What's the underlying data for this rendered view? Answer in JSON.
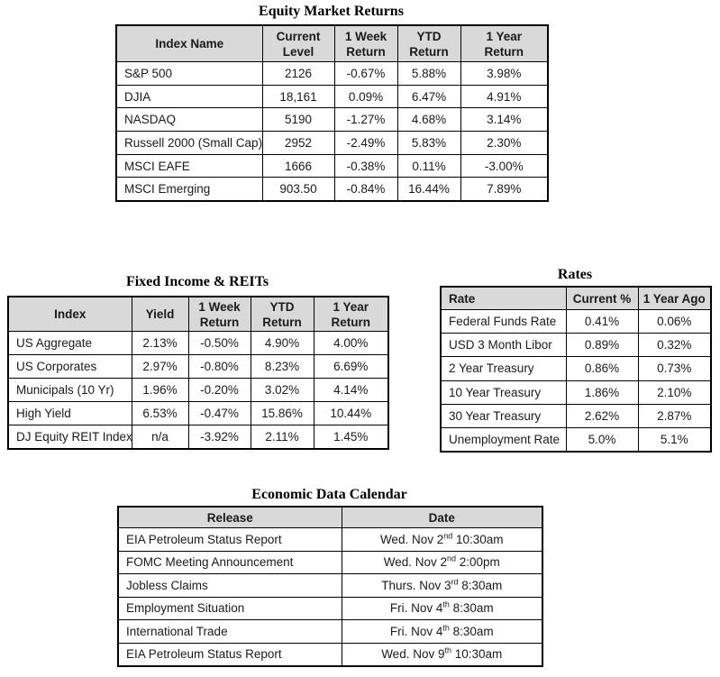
{
  "colors": {
    "header_bg": "#d9d9d9",
    "border": "#000000",
    "text": "#1a1a1a"
  },
  "equity": {
    "title": "Equity Market Returns",
    "headers": [
      [
        "Index Name"
      ],
      [
        "Current",
        "Level"
      ],
      [
        "1 Week",
        "Return"
      ],
      [
        "YTD",
        "Return"
      ],
      [
        "1 Year",
        "Return"
      ]
    ],
    "rows": [
      [
        "S&P 500",
        "2126",
        "-0.67%",
        "5.88%",
        "3.98%"
      ],
      [
        "DJIA",
        "18,161",
        "0.09%",
        "6.47%",
        "4.91%"
      ],
      [
        "NASDAQ",
        "5190",
        "-1.27%",
        "4.68%",
        "3.14%"
      ],
      [
        "Russell 2000 (Small Cap)",
        "2952",
        "-2.49%",
        "5.83%",
        "2.30%"
      ],
      [
        "MSCI EAFE",
        "1666",
        "-0.38%",
        "0.11%",
        "-3.00%"
      ],
      [
        "MSCI Emerging",
        "903.50",
        "-0.84%",
        "16.44%",
        "7.89%"
      ]
    ]
  },
  "fixed_income": {
    "title": "Fixed Income & REITs",
    "headers": [
      [
        "Index"
      ],
      [
        "Yield"
      ],
      [
        "1 Week",
        "Return"
      ],
      [
        "YTD",
        "Return"
      ],
      [
        "1 Year",
        "Return"
      ]
    ],
    "rows": [
      [
        "US Aggregate",
        "2.13%",
        "-0.50%",
        "4.90%",
        "4.00%"
      ],
      [
        "US Corporates",
        "2.97%",
        "-0.80%",
        "8.23%",
        "6.69%"
      ],
      [
        "Municipals (10 Yr)",
        "1.96%",
        "-0.20%",
        "3.02%",
        "4.14%"
      ],
      [
        "High Yield",
        "6.53%",
        "-0.47%",
        "15.86%",
        "10.44%"
      ],
      [
        "DJ Equity REIT Index",
        "n/a",
        "-3.92%",
        "2.11%",
        "1.45%"
      ]
    ]
  },
  "rates": {
    "title": "Rates",
    "headers": [
      [
        "Rate"
      ],
      [
        "Current %"
      ],
      [
        "1 Year Ago"
      ]
    ],
    "rows": [
      [
        "Federal Funds Rate",
        "0.41%",
        "0.06%"
      ],
      [
        "USD 3 Month Libor",
        "0.89%",
        "0.32%"
      ],
      [
        "2 Year Treasury",
        "0.86%",
        "0.73%"
      ],
      [
        "10 Year Treasury",
        "1.86%",
        "2.10%"
      ],
      [
        "30 Year Treasury",
        "2.62%",
        "2.87%"
      ],
      [
        "Unemployment Rate",
        "5.0%",
        "5.1%"
      ]
    ]
  },
  "calendar": {
    "title": "Economic Data Calendar",
    "headers": [
      [
        "Release"
      ],
      [
        "Date"
      ]
    ],
    "rows": [
      [
        "EIA Petroleum Status Report",
        [
          "Wed. Nov 2",
          {
            "sup": "nd"
          },
          " 10:30am"
        ]
      ],
      [
        "FOMC Meeting Announcement",
        [
          "Wed. Nov 2",
          {
            "sup": "nd"
          },
          " 2:00pm"
        ]
      ],
      [
        "Jobless Claims",
        [
          "Thurs. Nov 3",
          {
            "sup": "rd"
          },
          " 8:30am"
        ]
      ],
      [
        "Employment Situation",
        [
          "Fri. Nov 4",
          {
            "sup": "th"
          },
          " 8:30am"
        ]
      ],
      [
        "International Trade",
        [
          "Fri. Nov 4",
          {
            "sup": "th"
          },
          " 8:30am"
        ]
      ],
      [
        "EIA Petroleum Status Report",
        [
          "Wed. Nov 9",
          {
            "sup": "th"
          },
          " 10:30am"
        ]
      ]
    ]
  }
}
